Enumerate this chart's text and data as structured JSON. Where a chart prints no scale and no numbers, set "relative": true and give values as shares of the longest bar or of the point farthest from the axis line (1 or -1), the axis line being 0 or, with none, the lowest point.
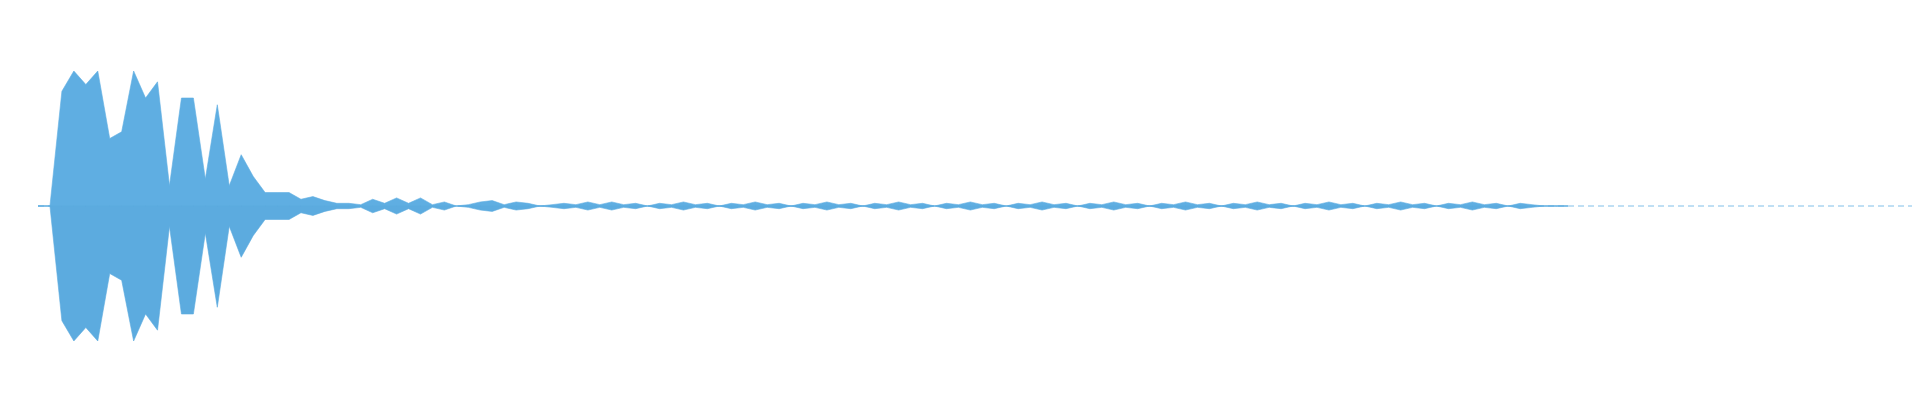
{
  "chart_data": {
    "type": "area",
    "relative": true,
    "ref_lines": [
      {
        "axis": "y",
        "value": 0,
        "color": "#5faee2",
        "line_style": "dashed"
      }
    ],
    "categories": [
      null,
      null,
      null,
      null,
      null,
      null,
      null,
      null,
      null,
      null,
      null,
      null,
      null,
      null,
      null,
      null,
      null,
      null,
      null,
      null,
      null,
      null,
      null,
      null,
      null,
      null,
      null,
      null,
      null,
      null,
      null,
      null,
      null,
      null,
      null,
      null,
      null,
      null,
      null,
      null,
      null,
      null,
      null,
      null,
      null,
      null,
      null,
      null,
      null,
      null,
      null,
      null,
      null,
      null,
      null,
      null,
      null,
      null,
      null,
      null,
      null,
      null,
      null,
      null,
      null,
      null,
      null,
      null,
      null,
      null,
      null,
      null,
      null,
      null,
      null,
      null,
      null,
      null,
      null,
      null,
      null,
      null,
      null,
      null,
      null,
      null,
      null,
      null,
      null,
      null,
      null,
      null,
      null,
      null,
      null,
      null,
      null,
      null,
      null,
      null,
      null,
      null,
      null,
      null,
      null,
      null,
      null,
      null,
      null,
      null,
      null,
      null,
      null,
      null,
      null,
      null,
      null,
      null,
      null,
      null,
      null,
      null,
      null,
      null,
      null,
      null,
      null,
      null,
      null
    ],
    "series": [
      {
        "color": "#5faee2",
        "values": [
          0,
          0,
          0.85,
          1,
          0.9,
          1,
          0.5,
          0.55,
          1,
          0.8,
          0.92,
          0.15,
          0.8,
          0.8,
          0.2,
          0.75,
          0.15,
          0.38,
          0.22,
          0.1,
          0.1,
          0.1,
          0.05,
          0.07,
          0.04,
          0.02,
          0.02,
          0.01,
          0.05,
          0.02,
          0.06,
          0.02,
          0.06,
          0.01,
          0.03,
          0,
          0.01,
          0.03,
          0.04,
          0.01,
          0.03,
          0.02,
          0,
          0.01,
          0.02,
          0.01,
          0.03,
          0.01,
          0.03,
          0.01,
          0.02,
          0,
          0.02,
          0.01,
          0.03,
          0.01,
          0.02,
          0,
          0.02,
          0.01,
          0.03,
          0.01,
          0.02,
          0,
          0.02,
          0.01,
          0.03,
          0.01,
          0.02,
          0,
          0.02,
          0.01,
          0.03,
          0.01,
          0.02,
          0,
          0.02,
          0.01,
          0.03,
          0.01,
          0.02,
          0,
          0.02,
          0.01,
          0.03,
          0.01,
          0.02,
          0,
          0.02,
          0.01,
          0.03,
          0.01,
          0.02,
          0,
          0.02,
          0.01,
          0.03,
          0.01,
          0.02,
          0,
          0.02,
          0.01,
          0.03,
          0.01,
          0.02,
          0,
          0.02,
          0.01,
          0.03,
          0.01,
          0.02,
          0,
          0.02,
          0.01,
          0.03,
          0.01,
          0.02,
          0,
          0.02,
          0.01,
          0.03,
          0.01,
          0.02,
          0,
          0.02,
          0.01,
          0,
          0,
          0
        ]
      },
      {
        "color": "#5cabdf",
        "values": [
          0,
          0,
          -0.85,
          -1,
          -0.9,
          -1,
          -0.5,
          -0.55,
          -1,
          -0.8,
          -0.92,
          -0.15,
          -0.8,
          -0.8,
          -0.2,
          -0.75,
          -0.15,
          -0.38,
          -0.22,
          -0.1,
          -0.1,
          -0.1,
          -0.05,
          -0.07,
          -0.04,
          -0.02,
          -0.02,
          -0.01,
          -0.05,
          -0.02,
          -0.06,
          -0.02,
          -0.06,
          -0.01,
          -0.03,
          0,
          -0.01,
          -0.03,
          -0.04,
          -0.01,
          -0.03,
          -0.02,
          0,
          -0.01,
          -0.02,
          -0.01,
          -0.03,
          -0.01,
          -0.03,
          -0.01,
          -0.02,
          0,
          -0.02,
          -0.01,
          -0.03,
          -0.01,
          -0.02,
          0,
          -0.02,
          -0.01,
          -0.03,
          -0.01,
          -0.02,
          0,
          -0.02,
          -0.01,
          -0.03,
          -0.01,
          -0.02,
          0,
          -0.02,
          -0.01,
          -0.03,
          -0.01,
          -0.02,
          0,
          -0.02,
          -0.01,
          -0.03,
          -0.01,
          -0.02,
          0,
          -0.02,
          -0.01,
          -0.03,
          -0.01,
          -0.02,
          0,
          -0.02,
          -0.01,
          -0.03,
          -0.01,
          -0.02,
          0,
          -0.02,
          -0.01,
          -0.03,
          -0.01,
          -0.02,
          0,
          -0.02,
          -0.01,
          -0.03,
          -0.01,
          -0.02,
          0,
          -0.02,
          -0.01,
          -0.03,
          -0.01,
          -0.02,
          0,
          -0.02,
          -0.01,
          -0.03,
          -0.01,
          -0.02,
          0,
          -0.02,
          -0.01,
          -0.03,
          -0.01,
          -0.02,
          0,
          -0.02,
          -0.01,
          0,
          0,
          0
        ]
      }
    ]
  }
}
